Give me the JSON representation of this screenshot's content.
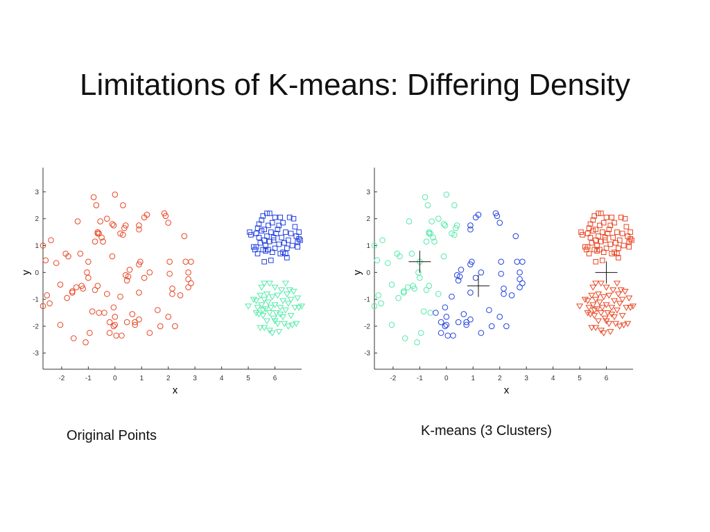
{
  "slide": {
    "title": "Limitations of K-means: Differing Density",
    "caption_left": "Original Points",
    "caption_right": "K-means (3 Clusters)"
  },
  "colors": {
    "red": "#e8431f",
    "blue": "#1f3ee0",
    "green": "#52eaa8",
    "centroid": "#111111",
    "axis": "#333333"
  },
  "chart_data": [
    {
      "type": "scatter",
      "title": "",
      "xlabel": "x",
      "ylabel": "y",
      "xlim": [
        -2.7,
        7.0
      ],
      "ylim": [
        -3.6,
        3.9
      ],
      "xticks": [
        -2,
        -1,
        0,
        1,
        2,
        3,
        4,
        5,
        6
      ],
      "yticks": [
        -3,
        -2,
        -1,
        0,
        1,
        2,
        3
      ],
      "grid": false,
      "series": [
        {
          "marker": "circle",
          "color": "red",
          "ref": "sparse"
        },
        {
          "marker": "square",
          "color": "blue",
          "ref": "dense_top"
        },
        {
          "marker": "triangle",
          "color": "green",
          "ref": "dense_bottom"
        }
      ]
    },
    {
      "type": "scatter",
      "title": "",
      "xlabel": "x",
      "ylabel": "y",
      "xlim": [
        -2.7,
        7.0
      ],
      "ylim": [
        -3.6,
        3.9
      ],
      "xticks": [
        -2,
        -1,
        0,
        1,
        2,
        3,
        4,
        5,
        6
      ],
      "yticks": [
        -3,
        -2,
        -1,
        0,
        1,
        2,
        3
      ],
      "grid": false,
      "cluster_colors": {
        "G": "green",
        "B": "blue",
        "R": "red"
      },
      "centroids": [
        [
          -1.0,
          0.4
        ],
        [
          1.2,
          -0.5
        ],
        [
          6.0,
          0.0
        ]
      ],
      "series": [
        {
          "marker": "circle",
          "ref": "sparse",
          "color_by_label": true
        },
        {
          "marker": "square",
          "color": "red",
          "ref": "dense_top"
        },
        {
          "marker": "triangle",
          "color": "red",
          "ref": "dense_bottom"
        }
      ]
    }
  ],
  "points": {
    "sparse": [
      [
        -0.8,
        2.8,
        "G"
      ],
      [
        0,
        2.9,
        "G"
      ],
      [
        -0.7,
        2.5,
        "G"
      ],
      [
        0.3,
        2.5,
        "G"
      ],
      [
        1.2,
        2.15,
        "B"
      ],
      [
        1.85,
        2.2,
        "B"
      ],
      [
        1.9,
        2.1,
        "B"
      ],
      [
        2,
        1.85,
        "B"
      ],
      [
        -1.4,
        1.9,
        "G"
      ],
      [
        -0.55,
        1.9,
        "G"
      ],
      [
        -0.3,
        2.0,
        "G"
      ],
      [
        -0.1,
        1.8,
        "G"
      ],
      [
        -0.05,
        1.75,
        "G"
      ],
      [
        0.4,
        1.75,
        "G"
      ],
      [
        0.35,
        1.65,
        "G"
      ],
      [
        0.9,
        1.75,
        "B"
      ],
      [
        0.9,
        1.6,
        "B"
      ],
      [
        1.1,
        2.05,
        "B"
      ],
      [
        -0.65,
        1.5,
        "G"
      ],
      [
        -0.65,
        1.45,
        "G"
      ],
      [
        -0.6,
        1.45,
        "G"
      ],
      [
        -0.5,
        1.3,
        "G"
      ],
      [
        -0.75,
        1.15,
        "G"
      ],
      [
        -0.45,
        1.15,
        "G"
      ],
      [
        0.2,
        1.45,
        "G"
      ],
      [
        0.3,
        1.4,
        "G"
      ],
      [
        2.6,
        1.35,
        "B"
      ],
      [
        -2.7,
        1.0,
        "G"
      ],
      [
        -2.4,
        1.2,
        "G"
      ],
      [
        -2.6,
        0.45,
        "G"
      ],
      [
        -2.2,
        0.35,
        "G"
      ],
      [
        -1.85,
        0.7,
        "G"
      ],
      [
        -1.75,
        0.6,
        "G"
      ],
      [
        -1.3,
        0.7,
        "G"
      ],
      [
        -1.0,
        0.4,
        "G"
      ],
      [
        -0.1,
        0.6,
        "G"
      ],
      [
        0.95,
        0.4,
        "B"
      ],
      [
        0.9,
        0.3,
        "B"
      ],
      [
        2.05,
        0.4,
        "B"
      ],
      [
        2.65,
        0.4,
        "B"
      ],
      [
        2.85,
        0.4,
        "B"
      ],
      [
        -1.05,
        0,
        "G"
      ],
      [
        -1.0,
        -0.2,
        "G"
      ],
      [
        0.4,
        -0.1,
        "B"
      ],
      [
        0.5,
        -0.15,
        "B"
      ],
      [
        0.55,
        0.1,
        "B"
      ],
      [
        0.45,
        -0.3,
        "B"
      ],
      [
        1.1,
        -0.2,
        "B"
      ],
      [
        1.3,
        0,
        "B"
      ],
      [
        2.05,
        -0.05,
        "B"
      ],
      [
        2.75,
        0,
        "B"
      ],
      [
        2.75,
        -0.25,
        "B"
      ],
      [
        2.85,
        -0.4,
        "B"
      ],
      [
        2.75,
        -0.55,
        "B"
      ],
      [
        2.15,
        -0.6,
        "B"
      ],
      [
        2.15,
        -0.8,
        "B"
      ],
      [
        2.45,
        -0.85,
        "B"
      ],
      [
        0.9,
        -0.75,
        "B"
      ],
      [
        0.2,
        -0.9,
        "B"
      ],
      [
        -0.3,
        -0.8,
        "G"
      ],
      [
        -0.65,
        -0.5,
        "G"
      ],
      [
        -0.75,
        -0.65,
        "G"
      ],
      [
        -1.25,
        -0.5,
        "G"
      ],
      [
        -1.2,
        -0.6,
        "G"
      ],
      [
        -1.45,
        -0.55,
        "G"
      ],
      [
        -1.6,
        -0.7,
        "G"
      ],
      [
        -1.6,
        -0.75,
        "G"
      ],
      [
        -1.8,
        -0.95,
        "G"
      ],
      [
        -2.05,
        -0.45,
        "G"
      ],
      [
        -2.55,
        -0.85,
        "G"
      ],
      [
        -2.45,
        -1.15,
        "G"
      ],
      [
        -2.7,
        -1.25,
        "G"
      ],
      [
        -0.85,
        -1.45,
        "G"
      ],
      [
        -0.6,
        -1.5,
        "G"
      ],
      [
        -0.4,
        -1.5,
        "B"
      ],
      [
        -0.05,
        -1.3,
        "B"
      ],
      [
        0,
        -1.65,
        "B"
      ],
      [
        -0.2,
        -1.85,
        "B"
      ],
      [
        0,
        -1.95,
        "B"
      ],
      [
        -0.05,
        -2.0,
        "B"
      ],
      [
        0.45,
        -1.85,
        "B"
      ],
      [
        0.65,
        -1.55,
        "B"
      ],
      [
        0.75,
        -1.85,
        "B"
      ],
      [
        0.75,
        -1.95,
        "B"
      ],
      [
        0.9,
        -1.75,
        "B"
      ],
      [
        1.6,
        -1.4,
        "B"
      ],
      [
        2.0,
        -1.65,
        "B"
      ],
      [
        1.7,
        -2.0,
        "B"
      ],
      [
        2.25,
        -2.0,
        "B"
      ],
      [
        1.3,
        -2.25,
        "B"
      ],
      [
        -0.2,
        -2.25,
        "B"
      ],
      [
        0.05,
        -2.35,
        "B"
      ],
      [
        0.25,
        -2.35,
        "B"
      ],
      [
        -0.95,
        -2.25,
        "G"
      ],
      [
        -1.55,
        -2.45,
        "G"
      ],
      [
        -1.1,
        -2.6,
        "G"
      ],
      [
        -2.05,
        -1.95,
        "G"
      ]
    ],
    "dense_top": [
      [
        5.05,
        1.5
      ],
      [
        5.1,
        1.4
      ],
      [
        5.2,
        0.95
      ],
      [
        5.25,
        0.85
      ],
      [
        5.3,
        0.95
      ],
      [
        5.35,
        0.7
      ],
      [
        5.3,
        1.45
      ],
      [
        5.35,
        1.65
      ],
      [
        5.4,
        1.8
      ],
      [
        5.4,
        1.3
      ],
      [
        5.45,
        1.1
      ],
      [
        5.5,
        1.55
      ],
      [
        5.5,
        1.95
      ],
      [
        5.55,
        2.1
      ],
      [
        5.55,
        0.85
      ],
      [
        5.6,
        0.4
      ],
      [
        5.6,
        1.2
      ],
      [
        5.6,
        1.6
      ],
      [
        5.65,
        1.0
      ],
      [
        5.7,
        1.35
      ],
      [
        5.7,
        2.2
      ],
      [
        5.75,
        1.75
      ],
      [
        5.75,
        0.85
      ],
      [
        5.8,
        2.2
      ],
      [
        5.8,
        1.15
      ],
      [
        5.85,
        0.45
      ],
      [
        5.85,
        1.5
      ],
      [
        5.9,
        0.75
      ],
      [
        5.9,
        1.85
      ],
      [
        5.95,
        1.2
      ],
      [
        6.0,
        2.05
      ],
      [
        6.0,
        0.9
      ],
      [
        6.05,
        1.45
      ],
      [
        6.1,
        1.6
      ],
      [
        6.15,
        1.05
      ],
      [
        6.2,
        2.05
      ],
      [
        6.2,
        0.7
      ],
      [
        6.25,
        1.3
      ],
      [
        6.3,
        1.85
      ],
      [
        6.3,
        0.75
      ],
      [
        6.35,
        1.1
      ],
      [
        6.4,
        1.5
      ],
      [
        6.45,
        0.55
      ],
      [
        6.45,
        0.9
      ],
      [
        6.5,
        1.2
      ],
      [
        6.55,
        2.05
      ],
      [
        6.6,
        1.45
      ],
      [
        6.65,
        1.0
      ],
      [
        6.7,
        2.0
      ],
      [
        6.75,
        1.7
      ],
      [
        6.8,
        1.35
      ],
      [
        6.85,
        1.15
      ],
      [
        6.85,
        0.95
      ],
      [
        6.9,
        1.25
      ],
      [
        6.9,
        1.5
      ],
      [
        6.95,
        1.2
      ],
      [
        6.15,
        1.75
      ],
      [
        5.95,
        1.3
      ],
      [
        6.4,
        0.7
      ],
      [
        5.65,
        0.8
      ]
    ],
    "dense_bottom": [
      [
        5.0,
        -1.25
      ],
      [
        5.2,
        -1.0
      ],
      [
        5.3,
        -1.05
      ],
      [
        5.3,
        -1.5
      ],
      [
        5.35,
        -1.3
      ],
      [
        5.4,
        -1.55
      ],
      [
        5.45,
        -0.85
      ],
      [
        5.45,
        -2.05
      ],
      [
        5.5,
        -1.2
      ],
      [
        5.5,
        -0.55
      ],
      [
        5.55,
        -1.6
      ],
      [
        5.6,
        -0.4
      ],
      [
        5.6,
        -1.0
      ],
      [
        5.6,
        -2.05
      ],
      [
        5.65,
        -1.35
      ],
      [
        5.7,
        -0.8
      ],
      [
        5.7,
        -1.8
      ],
      [
        5.75,
        -1.1
      ],
      [
        5.8,
        -0.4
      ],
      [
        5.8,
        -1.5
      ],
      [
        5.8,
        -2.15
      ],
      [
        5.85,
        -1.3
      ],
      [
        5.9,
        -0.9
      ],
      [
        5.9,
        -2.25
      ],
      [
        5.95,
        -1.7
      ],
      [
        6.0,
        -1.2
      ],
      [
        6.0,
        -0.55
      ],
      [
        6.05,
        -1.5
      ],
      [
        6.1,
        -1.9
      ],
      [
        6.1,
        -0.85
      ],
      [
        6.15,
        -2.2
      ],
      [
        6.2,
        -1.3
      ],
      [
        6.25,
        -0.65
      ],
      [
        6.3,
        -1.65
      ],
      [
        6.3,
        -1.05
      ],
      [
        6.35,
        -1.9
      ],
      [
        6.4,
        -0.4
      ],
      [
        6.4,
        -1.4
      ],
      [
        6.45,
        -0.8
      ],
      [
        6.5,
        -2.0
      ],
      [
        6.5,
        -1.15
      ],
      [
        6.55,
        -0.65
      ],
      [
        6.6,
        -1.6
      ],
      [
        6.6,
        -1.0
      ],
      [
        6.65,
        -1.95
      ],
      [
        6.7,
        -0.7
      ],
      [
        6.75,
        -1.3
      ],
      [
        6.8,
        -1.9
      ],
      [
        6.85,
        -0.95
      ],
      [
        6.9,
        -1.3
      ],
      [
        7.0,
        -1.25
      ],
      [
        6.0,
        -1.8
      ],
      [
        5.55,
        -1.4
      ],
      [
        6.2,
        -1.55
      ]
    ]
  }
}
